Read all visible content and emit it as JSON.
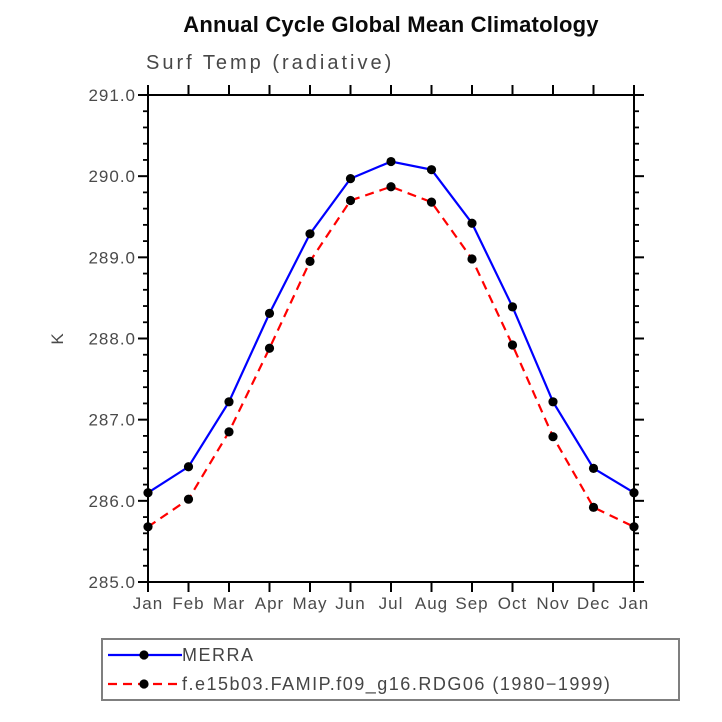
{
  "title": "Annual Cycle Global Mean Climatology",
  "subtitle": "Surf Temp (radiative)",
  "colors": {
    "axis": "#000000",
    "tick_label": "#4a4a4a",
    "title": "#0a0a0a",
    "subtitle": "#484848",
    "legend_border": "#7f7f7f",
    "marker": "#000000",
    "series_merra": "#0000ff",
    "series_model": "#ff0000"
  },
  "chart_data": {
    "type": "line",
    "x_categories": [
      "Jan",
      "Feb",
      "Mar",
      "Apr",
      "May",
      "Jun",
      "Jul",
      "Aug",
      "Sep",
      "Oct",
      "Nov",
      "Dec",
      "Jan"
    ],
    "xlabel": "",
    "ylabel": "K",
    "ylim": [
      285.0,
      291.0
    ],
    "ytick_interval": 1.0,
    "yminor_interval": 0.2,
    "ytick_labels": [
      "285.0",
      "286.0",
      "287.0",
      "288.0",
      "289.0",
      "290.0",
      "291.0"
    ],
    "grid": false,
    "legend_position": "bottom-left",
    "series": [
      {
        "name": "MERRA",
        "color": "#0000ff",
        "line_style": "solid",
        "marker": "circle",
        "marker_color": "#000000",
        "values": [
          286.1,
          286.42,
          287.22,
          288.31,
          289.29,
          289.97,
          290.18,
          290.08,
          289.42,
          288.39,
          287.22,
          286.4,
          286.1
        ]
      },
      {
        "name": "f.e15b03.FAMIP.f09_g16.RDG06 (1980−1999)",
        "color": "#ff0000",
        "line_style": "dashed",
        "marker": "circle",
        "marker_color": "#000000",
        "values": [
          285.68,
          286.02,
          286.85,
          287.88,
          288.95,
          289.7,
          289.87,
          289.68,
          288.98,
          287.92,
          286.79,
          285.92,
          285.68
        ]
      }
    ]
  }
}
